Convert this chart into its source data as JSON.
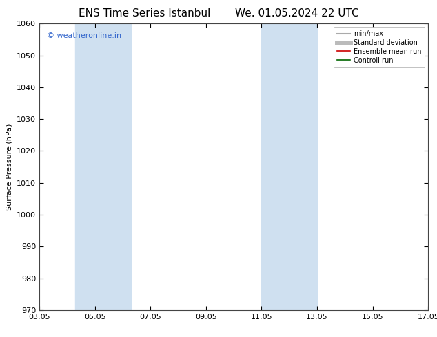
{
  "title_left": "ENS Time Series Istanbul",
  "title_right": "We. 01.05.2024 22 UTC",
  "ylabel": "Surface Pressure (hPa)",
  "ylim": [
    970,
    1060
  ],
  "yticks": [
    970,
    980,
    990,
    1000,
    1010,
    1020,
    1030,
    1040,
    1050,
    1060
  ],
  "xlim": [
    0,
    14
  ],
  "xtick_positions": [
    0,
    2,
    4,
    6,
    8,
    10,
    12,
    14
  ],
  "xtick_labels": [
    "03.05",
    "05.05",
    "07.05",
    "09.05",
    "11.05",
    "13.05",
    "15.05",
    "17.05"
  ],
  "shaded_bands": [
    {
      "xmin": 1.3,
      "xmax": 3.3
    },
    {
      "xmin": 8.0,
      "xmax": 10.0
    }
  ],
  "shade_color": "#cfe0f0",
  "watermark": "© weatheronline.in",
  "watermark_color": "#3366cc",
  "legend_items": [
    {
      "label": "min/max",
      "color": "#aaaaaa",
      "lw": 1.5,
      "style": "solid"
    },
    {
      "label": "Standard deviation",
      "color": "#bbbbbb",
      "lw": 5,
      "style": "solid"
    },
    {
      "label": "Ensemble mean run",
      "color": "#cc0000",
      "lw": 1.2,
      "style": "solid"
    },
    {
      "label": "Controll run",
      "color": "#006600",
      "lw": 1.2,
      "style": "solid"
    }
  ],
  "bg_color": "#ffffff",
  "axes_bg_color": "#ffffff",
  "title_fontsize": 11,
  "tick_fontsize": 8,
  "ylabel_fontsize": 8,
  "watermark_fontsize": 8,
  "legend_fontsize": 7
}
